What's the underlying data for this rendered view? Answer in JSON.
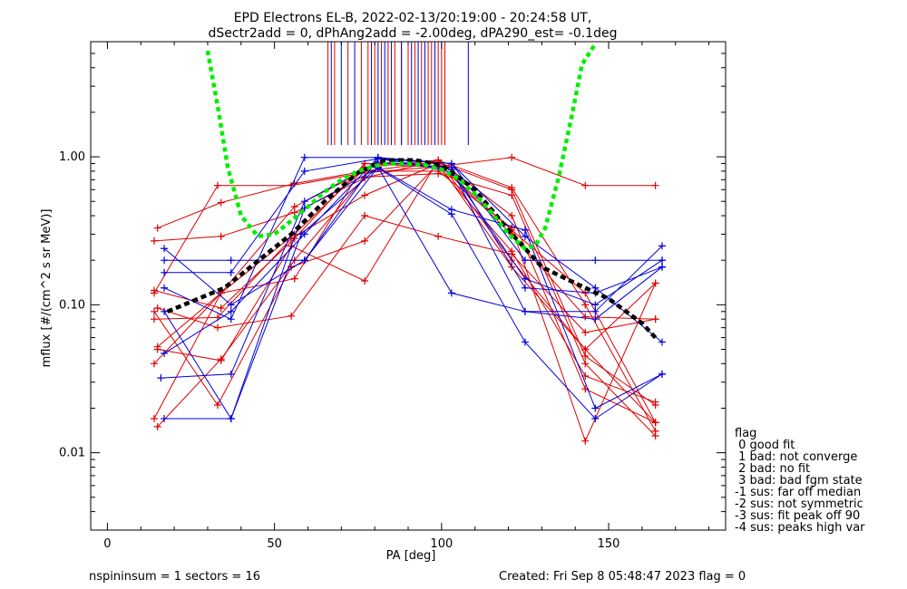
{
  "chart_data": {
    "type": "line",
    "title": "EPD Electrons EL-B, 2022-02-13/20:19:00 - 20:24:58 UT,",
    "subtitle": "dSectr2add = 0, dPhAng2add = -2.00deg, dPA290_est=  -0.1deg",
    "xlabel": "PA [deg]",
    "ylabel": "mflux [#/(cm^2 s sr MeV)]",
    "xlim": [
      -5,
      185
    ],
    "ylim": [
      0.003,
      6.0
    ],
    "yscale": "log",
    "x_ticks": [
      0,
      50,
      100,
      150
    ],
    "x_tick_labels": [
      "0",
      "50",
      "100",
      "150"
    ],
    "y_ticks": [
      0.01,
      0.1,
      1.0
    ],
    "y_tick_labels": [
      "0.01",
      "0.10",
      "1.00"
    ],
    "grid": false,
    "colors": {
      "red": "#dd0000",
      "blue": "#0000dd",
      "green": "#00ee00",
      "black": "#000000"
    },
    "series": [
      {
        "color": "#dd0000",
        "x": [
          15,
          34,
          56,
          77,
          99,
          121,
          143,
          164
        ],
        "y": [
          0.33,
          0.49,
          0.66,
          0.8,
          0.92,
          0.6,
          0.045,
          0.021
        ]
      },
      {
        "color": "#dd0000",
        "x": [
          14,
          34,
          56,
          77,
          99,
          121,
          143,
          164
        ],
        "y": [
          0.27,
          0.29,
          0.42,
          0.72,
          0.95,
          0.4,
          0.027,
          0.016
        ]
      },
      {
        "color": "#dd0000",
        "x": [
          14,
          33,
          55,
          77,
          99,
          121,
          143,
          164
        ],
        "y": [
          0.12,
          0.64,
          0.64,
          0.78,
          0.86,
          0.99,
          0.64,
          0.64
        ]
      },
      {
        "color": "#dd0000",
        "x": [
          14,
          33,
          55,
          77,
          99,
          121,
          143,
          164
        ],
        "y": [
          0.08,
          0.082,
          0.28,
          0.55,
          0.9,
          0.32,
          0.12,
          0.016
        ]
      },
      {
        "color": "#dd0000",
        "x": [
          15,
          34,
          56,
          77,
          99,
          121,
          143,
          164
        ],
        "y": [
          0.052,
          0.12,
          0.3,
          0.85,
          0.95,
          0.2,
          0.05,
          0.14
        ]
      },
      {
        "color": "#dd0000",
        "x": [
          15,
          34,
          56,
          77,
          99,
          121,
          143,
          164
        ],
        "y": [
          0.015,
          0.043,
          0.2,
          0.73,
          0.77,
          0.55,
          0.04,
          0.013
        ]
      },
      {
        "color": "#dd0000",
        "x": [
          14,
          34,
          56,
          77,
          99,
          121,
          143,
          164
        ],
        "y": [
          0.017,
          0.12,
          0.15,
          0.9,
          0.85,
          0.23,
          0.033,
          0.022
        ]
      },
      {
        "color": "#dd0000",
        "x": [
          14,
          34,
          56,
          77,
          99,
          121,
          143,
          164
        ],
        "y": [
          0.04,
          0.12,
          0.46,
          0.8,
          0.8,
          0.33,
          0.012,
          0.14
        ]
      },
      {
        "color": "#dd0000",
        "x": [
          15,
          33,
          55,
          77,
          99,
          121,
          143,
          164
        ],
        "y": [
          0.095,
          0.07,
          0.084,
          0.4,
          0.29,
          0.22,
          0.065,
          0.08
        ]
      },
      {
        "color": "#dd0000",
        "x": [
          14,
          34,
          56,
          77,
          99,
          121,
          143,
          164
        ],
        "y": [
          0.125,
          0.095,
          0.28,
          0.9,
          0.9,
          0.3,
          0.083,
          0.08
        ]
      },
      {
        "color": "#dd0000",
        "x": [
          14,
          33,
          55,
          77,
          99,
          121,
          143,
          164
        ],
        "y": [
          0.09,
          0.021,
          0.18,
          0.27,
          0.9,
          0.18,
          0.05,
          0.016
        ]
      },
      {
        "color": "#dd0000",
        "x": [
          15,
          34,
          55,
          77,
          99,
          121,
          143,
          164
        ],
        "y": [
          0.05,
          0.042,
          0.25,
          0.145,
          0.95,
          0.62,
          0.1,
          0.014
        ]
      },
      {
        "color": "#0000dd",
        "x": [
          17,
          37,
          59,
          81,
          103,
          125,
          146,
          166
        ],
        "y": [
          0.24,
          0.1,
          0.2,
          0.85,
          0.12,
          0.09,
          0.09,
          0.25
        ]
      },
      {
        "color": "#0000dd",
        "x": [
          17,
          37,
          59,
          81,
          103,
          125,
          146,
          166
        ],
        "y": [
          0.2,
          0.2,
          0.2,
          0.97,
          0.9,
          0.2,
          0.2,
          0.2
        ]
      },
      {
        "color": "#0000dd",
        "x": [
          17,
          37,
          59,
          81,
          103,
          125,
          146,
          166
        ],
        "y": [
          0.165,
          0.165,
          0.8,
          0.97,
          0.82,
          0.09,
          0.08,
          0.18
        ]
      },
      {
        "color": "#0000dd",
        "x": [
          17,
          37,
          59,
          81,
          103,
          125,
          146,
          166
        ],
        "y": [
          0.13,
          0.08,
          0.99,
          0.99,
          0.9,
          0.29,
          0.13,
          0.056
        ]
      },
      {
        "color": "#0000dd",
        "x": [
          17,
          37,
          59,
          81,
          103,
          125,
          146,
          166
        ],
        "y": [
          0.09,
          0.017,
          0.45,
          0.84,
          0.41,
          0.056,
          0.017,
          0.034
        ]
      },
      {
        "color": "#0000dd",
        "x": [
          16,
          37,
          59,
          81,
          103,
          125,
          146,
          166
        ],
        "y": [
          0.032,
          0.034,
          0.5,
          0.92,
          0.85,
          0.13,
          0.12,
          0.18
        ]
      },
      {
        "color": "#0000dd",
        "x": [
          17,
          37,
          58,
          81,
          103,
          125,
          146,
          166
        ],
        "y": [
          0.017,
          0.017,
          0.3,
          0.85,
          0.44,
          0.32,
          0.02,
          0.034
        ]
      },
      {
        "color": "#0000dd",
        "x": [
          17,
          37,
          59,
          81,
          103,
          125,
          146,
          166
        ],
        "y": [
          0.047,
          0.09,
          0.3,
          0.99,
          0.79,
          0.15,
          0.1,
          0.2
        ]
      }
    ],
    "fits": [
      {
        "name": "",
        "color": "#000000",
        "style": "dashed",
        "x": [
          18,
          35,
          55,
          65,
          75,
          83,
          92,
          100,
          110,
          120,
          130,
          140,
          150,
          160,
          164
        ],
        "y": [
          0.09,
          0.13,
          0.3,
          0.5,
          0.78,
          0.95,
          0.95,
          0.88,
          0.6,
          0.32,
          0.18,
          0.14,
          0.11,
          0.075,
          0.06
        ]
      },
      {
        "name": "",
        "color": "#00ee00",
        "style": "dotted",
        "x": [
          30,
          33,
          36,
          40,
          45,
          50,
          55,
          60,
          65,
          70,
          75,
          80,
          85,
          90,
          95,
          100,
          105,
          110,
          115,
          120,
          125,
          128,
          131,
          135,
          139,
          142,
          146
        ],
        "y": [
          5.2,
          2.2,
          0.85,
          0.4,
          0.29,
          0.3,
          0.37,
          0.46,
          0.58,
          0.7,
          0.8,
          0.87,
          0.9,
          0.9,
          0.88,
          0.82,
          0.71,
          0.56,
          0.42,
          0.3,
          0.24,
          0.25,
          0.33,
          0.72,
          1.9,
          4.2,
          5.8
        ]
      }
    ],
    "vertical_lines": [
      {
        "color": "#dd0000",
        "x": [
          66,
          68,
          72,
          76,
          78,
          80,
          82,
          84,
          86,
          88,
          90,
          92,
          94,
          96,
          97,
          99,
          100,
          101
        ]
      },
      {
        "color": "#0000dd",
        "x": [
          67,
          70,
          74,
          79,
          81,
          83,
          85,
          88,
          91,
          93,
          95,
          98,
          108
        ]
      }
    ],
    "vertical_lines_ylim": [
      1.2,
      6.0
    ],
    "legend": {
      "placement": "lower-right outside",
      "entries": [
        "flag",
        " 0 good fit",
        " 1 bad: not converge",
        " 2 bad: no fit",
        " 3 bad: bad fgm state",
        "-1 sus: far off median",
        "-2 sus: not symmetric",
        "-3 sus: fit peak off 90",
        "-4 sus: peaks high var"
      ]
    }
  },
  "footer": {
    "left": "nspininsum =  1  sectors = 16",
    "right": "Created: Fri Sep  8 05:48:47 2023   flag = 0"
  }
}
